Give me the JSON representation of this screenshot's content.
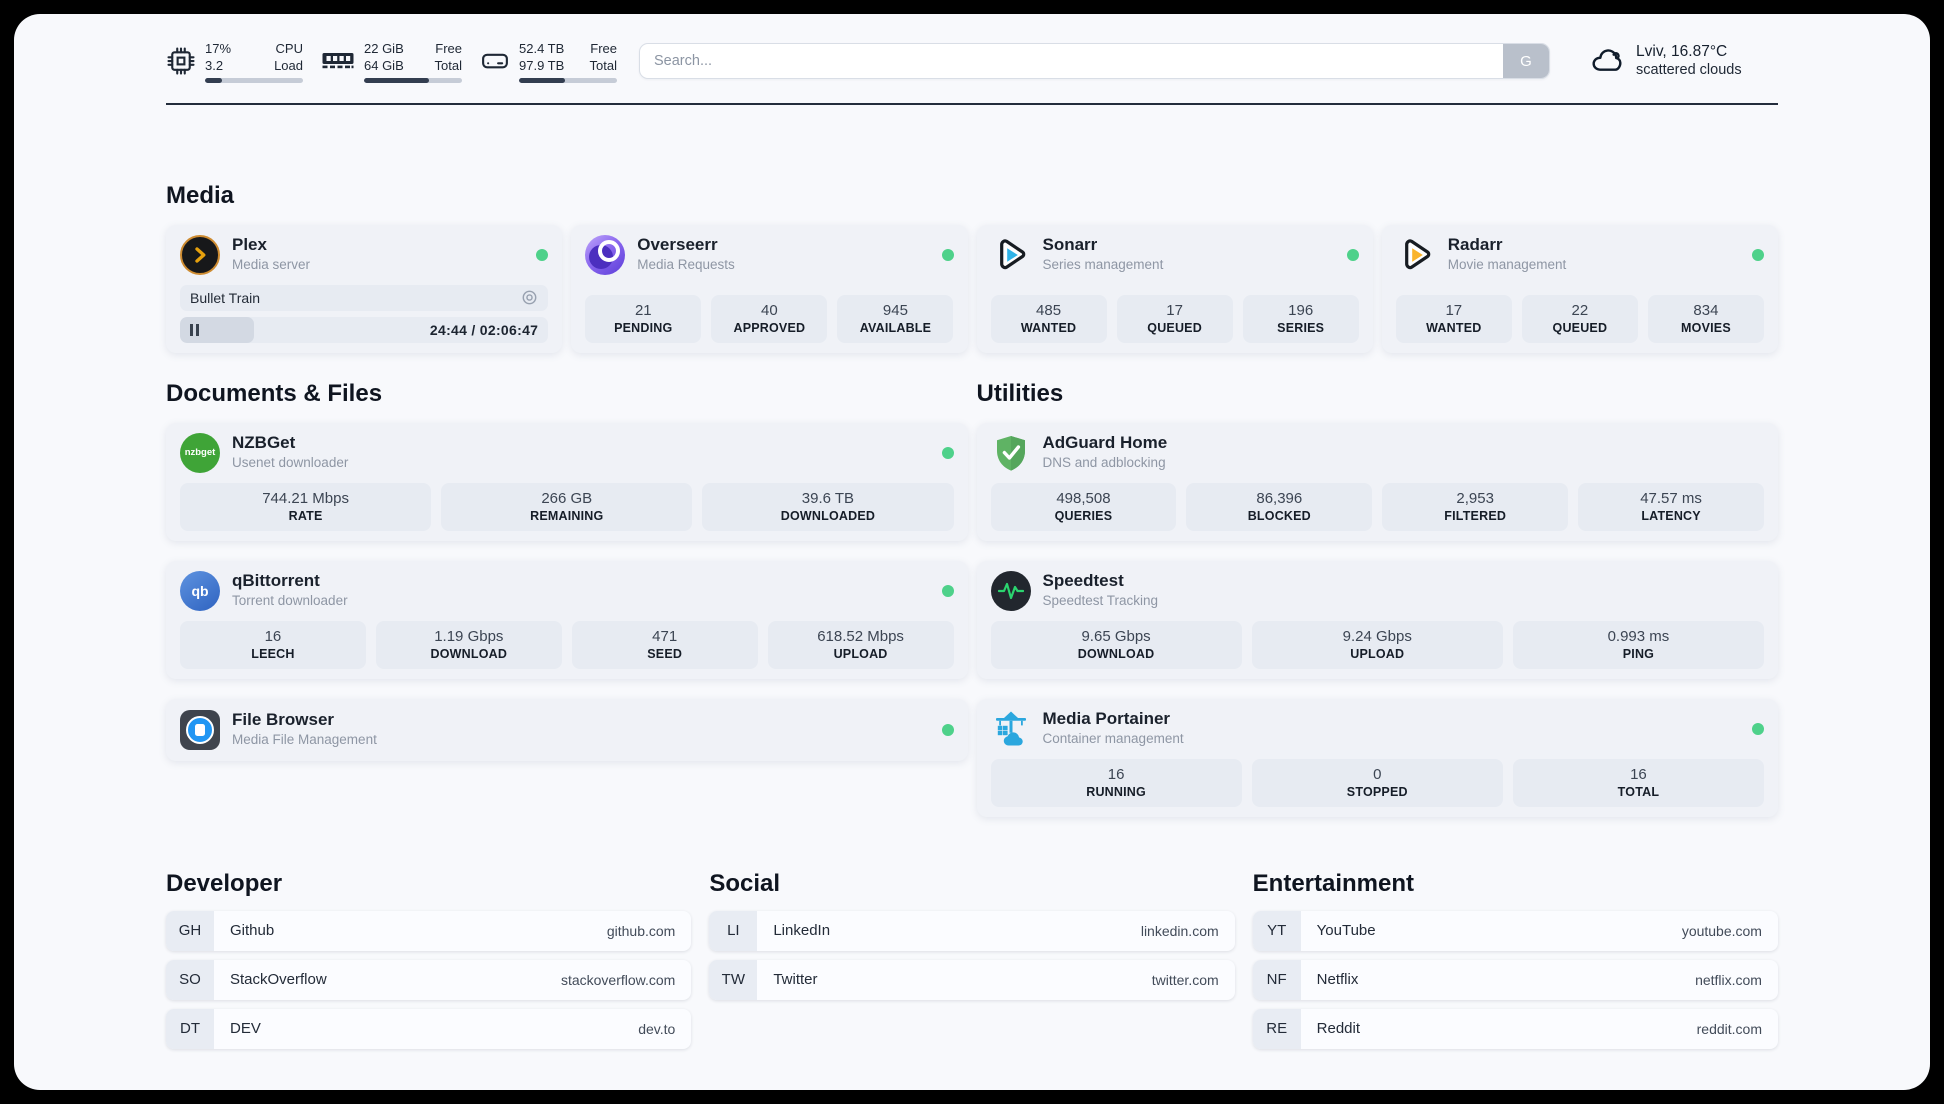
{
  "colors": {
    "status_online_green": "#4ed18a",
    "plex_amber": "#e5a00d",
    "sonarr_blue": "#2fb3e8",
    "radarr_amber": "#f9b32a",
    "nzbget_green": "#3fa437",
    "qbittorrent_blue": "#2f63c0",
    "filebrowser_blue": "#2196f3",
    "adguard_green": "#5fb364",
    "speedtest_green": "#2bd46f",
    "portainer_blue": "#2ba7de"
  },
  "header": {
    "system_stats": [
      {
        "name": "cpu",
        "value_top": "17%",
        "value_bottom": "3.2",
        "label_top": "CPU",
        "label_bottom": "Load",
        "progress_percent": 17
      },
      {
        "name": "memory",
        "value_top": "22 GiB",
        "value_bottom": "64 GiB",
        "label_top": "Free",
        "label_bottom": "Total",
        "progress_percent": 66
      },
      {
        "name": "storage",
        "value_top": "52.4 TB",
        "value_bottom": "97.9 TB",
        "label_top": "Free",
        "label_bottom": "Total",
        "progress_percent": 47
      }
    ],
    "search": {
      "placeholder": "Search...",
      "engine_button": "G"
    },
    "weather": {
      "location": "Lviv, 16.87°C",
      "condition": "scattered clouds"
    }
  },
  "media": {
    "title": "Media",
    "plex": {
      "name": "Plex",
      "subtitle": "Media server",
      "now_playing": "Bullet Train",
      "time": "24:44 / 02:06:47",
      "progress_percent": 20
    },
    "overseerr": {
      "name": "Overseerr",
      "subtitle": "Media Requests",
      "stats": [
        {
          "value": "21",
          "label": "PENDING"
        },
        {
          "value": "40",
          "label": "APPROVED"
        },
        {
          "value": "945",
          "label": "AVAILABLE"
        }
      ]
    },
    "sonarr": {
      "name": "Sonarr",
      "subtitle": "Series management",
      "stats": [
        {
          "value": "485",
          "label": "WANTED"
        },
        {
          "value": "17",
          "label": "QUEUED"
        },
        {
          "value": "196",
          "label": "SERIES"
        }
      ]
    },
    "radarr": {
      "name": "Radarr",
      "subtitle": "Movie management",
      "stats": [
        {
          "value": "17",
          "label": "WANTED"
        },
        {
          "value": "22",
          "label": "QUEUED"
        },
        {
          "value": "834",
          "label": "MOVIES"
        }
      ]
    }
  },
  "documents": {
    "title": "Documents & Files",
    "nzbget": {
      "name": "NZBGet",
      "subtitle": "Usenet downloader",
      "icon_text": "nzbget",
      "stats": [
        {
          "value": "744.21 Mbps",
          "label": "RATE"
        },
        {
          "value": "266 GB",
          "label": "REMAINING"
        },
        {
          "value": "39.6 TB",
          "label": "DOWNLOADED"
        }
      ]
    },
    "qbittorrent": {
      "name": "qBittorrent",
      "subtitle": "Torrent downloader",
      "icon_text": "qb",
      "stats": [
        {
          "value": "16",
          "label": "LEECH"
        },
        {
          "value": "1.19 Gbps",
          "label": "DOWNLOAD"
        },
        {
          "value": "471",
          "label": "SEED"
        },
        {
          "value": "618.52 Mbps",
          "label": "UPLOAD"
        }
      ]
    },
    "filebrowser": {
      "name": "File Browser",
      "subtitle": "Media File Management"
    }
  },
  "utilities": {
    "title": "Utilities",
    "adguard": {
      "name": "AdGuard Home",
      "subtitle": "DNS and adblocking",
      "stats": [
        {
          "value": "498,508",
          "label": "QUERIES"
        },
        {
          "value": "86,396",
          "label": "BLOCKED"
        },
        {
          "value": "2,953",
          "label": "FILTERED"
        },
        {
          "value": "47.57 ms",
          "label": "LATENCY"
        }
      ]
    },
    "speedtest": {
      "name": "Speedtest",
      "subtitle": "Speedtest Tracking",
      "stats": [
        {
          "value": "9.65 Gbps",
          "label": "DOWNLOAD"
        },
        {
          "value": "9.24 Gbps",
          "label": "UPLOAD"
        },
        {
          "value": "0.993 ms",
          "label": "PING"
        }
      ]
    },
    "portainer": {
      "name": "Media Portainer",
      "subtitle": "Container management",
      "stats": [
        {
          "value": "16",
          "label": "RUNNING"
        },
        {
          "value": "0",
          "label": "STOPPED"
        },
        {
          "value": "16",
          "label": "TOTAL"
        }
      ]
    }
  },
  "links": {
    "developer": {
      "title": "Developer",
      "items": [
        {
          "badge": "GH",
          "name": "Github",
          "url": "github.com"
        },
        {
          "badge": "SO",
          "name": "StackOverflow",
          "url": "stackoverflow.com"
        },
        {
          "badge": "DT",
          "name": "DEV",
          "url": "dev.to"
        }
      ]
    },
    "social": {
      "title": "Social",
      "items": [
        {
          "badge": "LI",
          "name": "LinkedIn",
          "url": "linkedin.com"
        },
        {
          "badge": "TW",
          "name": "Twitter",
          "url": "twitter.com"
        }
      ]
    },
    "entertainment": {
      "title": "Entertainment",
      "items": [
        {
          "badge": "YT",
          "name": "YouTube",
          "url": "youtube.com"
        },
        {
          "badge": "NF",
          "name": "Netflix",
          "url": "netflix.com"
        },
        {
          "badge": "RE",
          "name": "Reddit",
          "url": "reddit.com"
        }
      ]
    }
  }
}
